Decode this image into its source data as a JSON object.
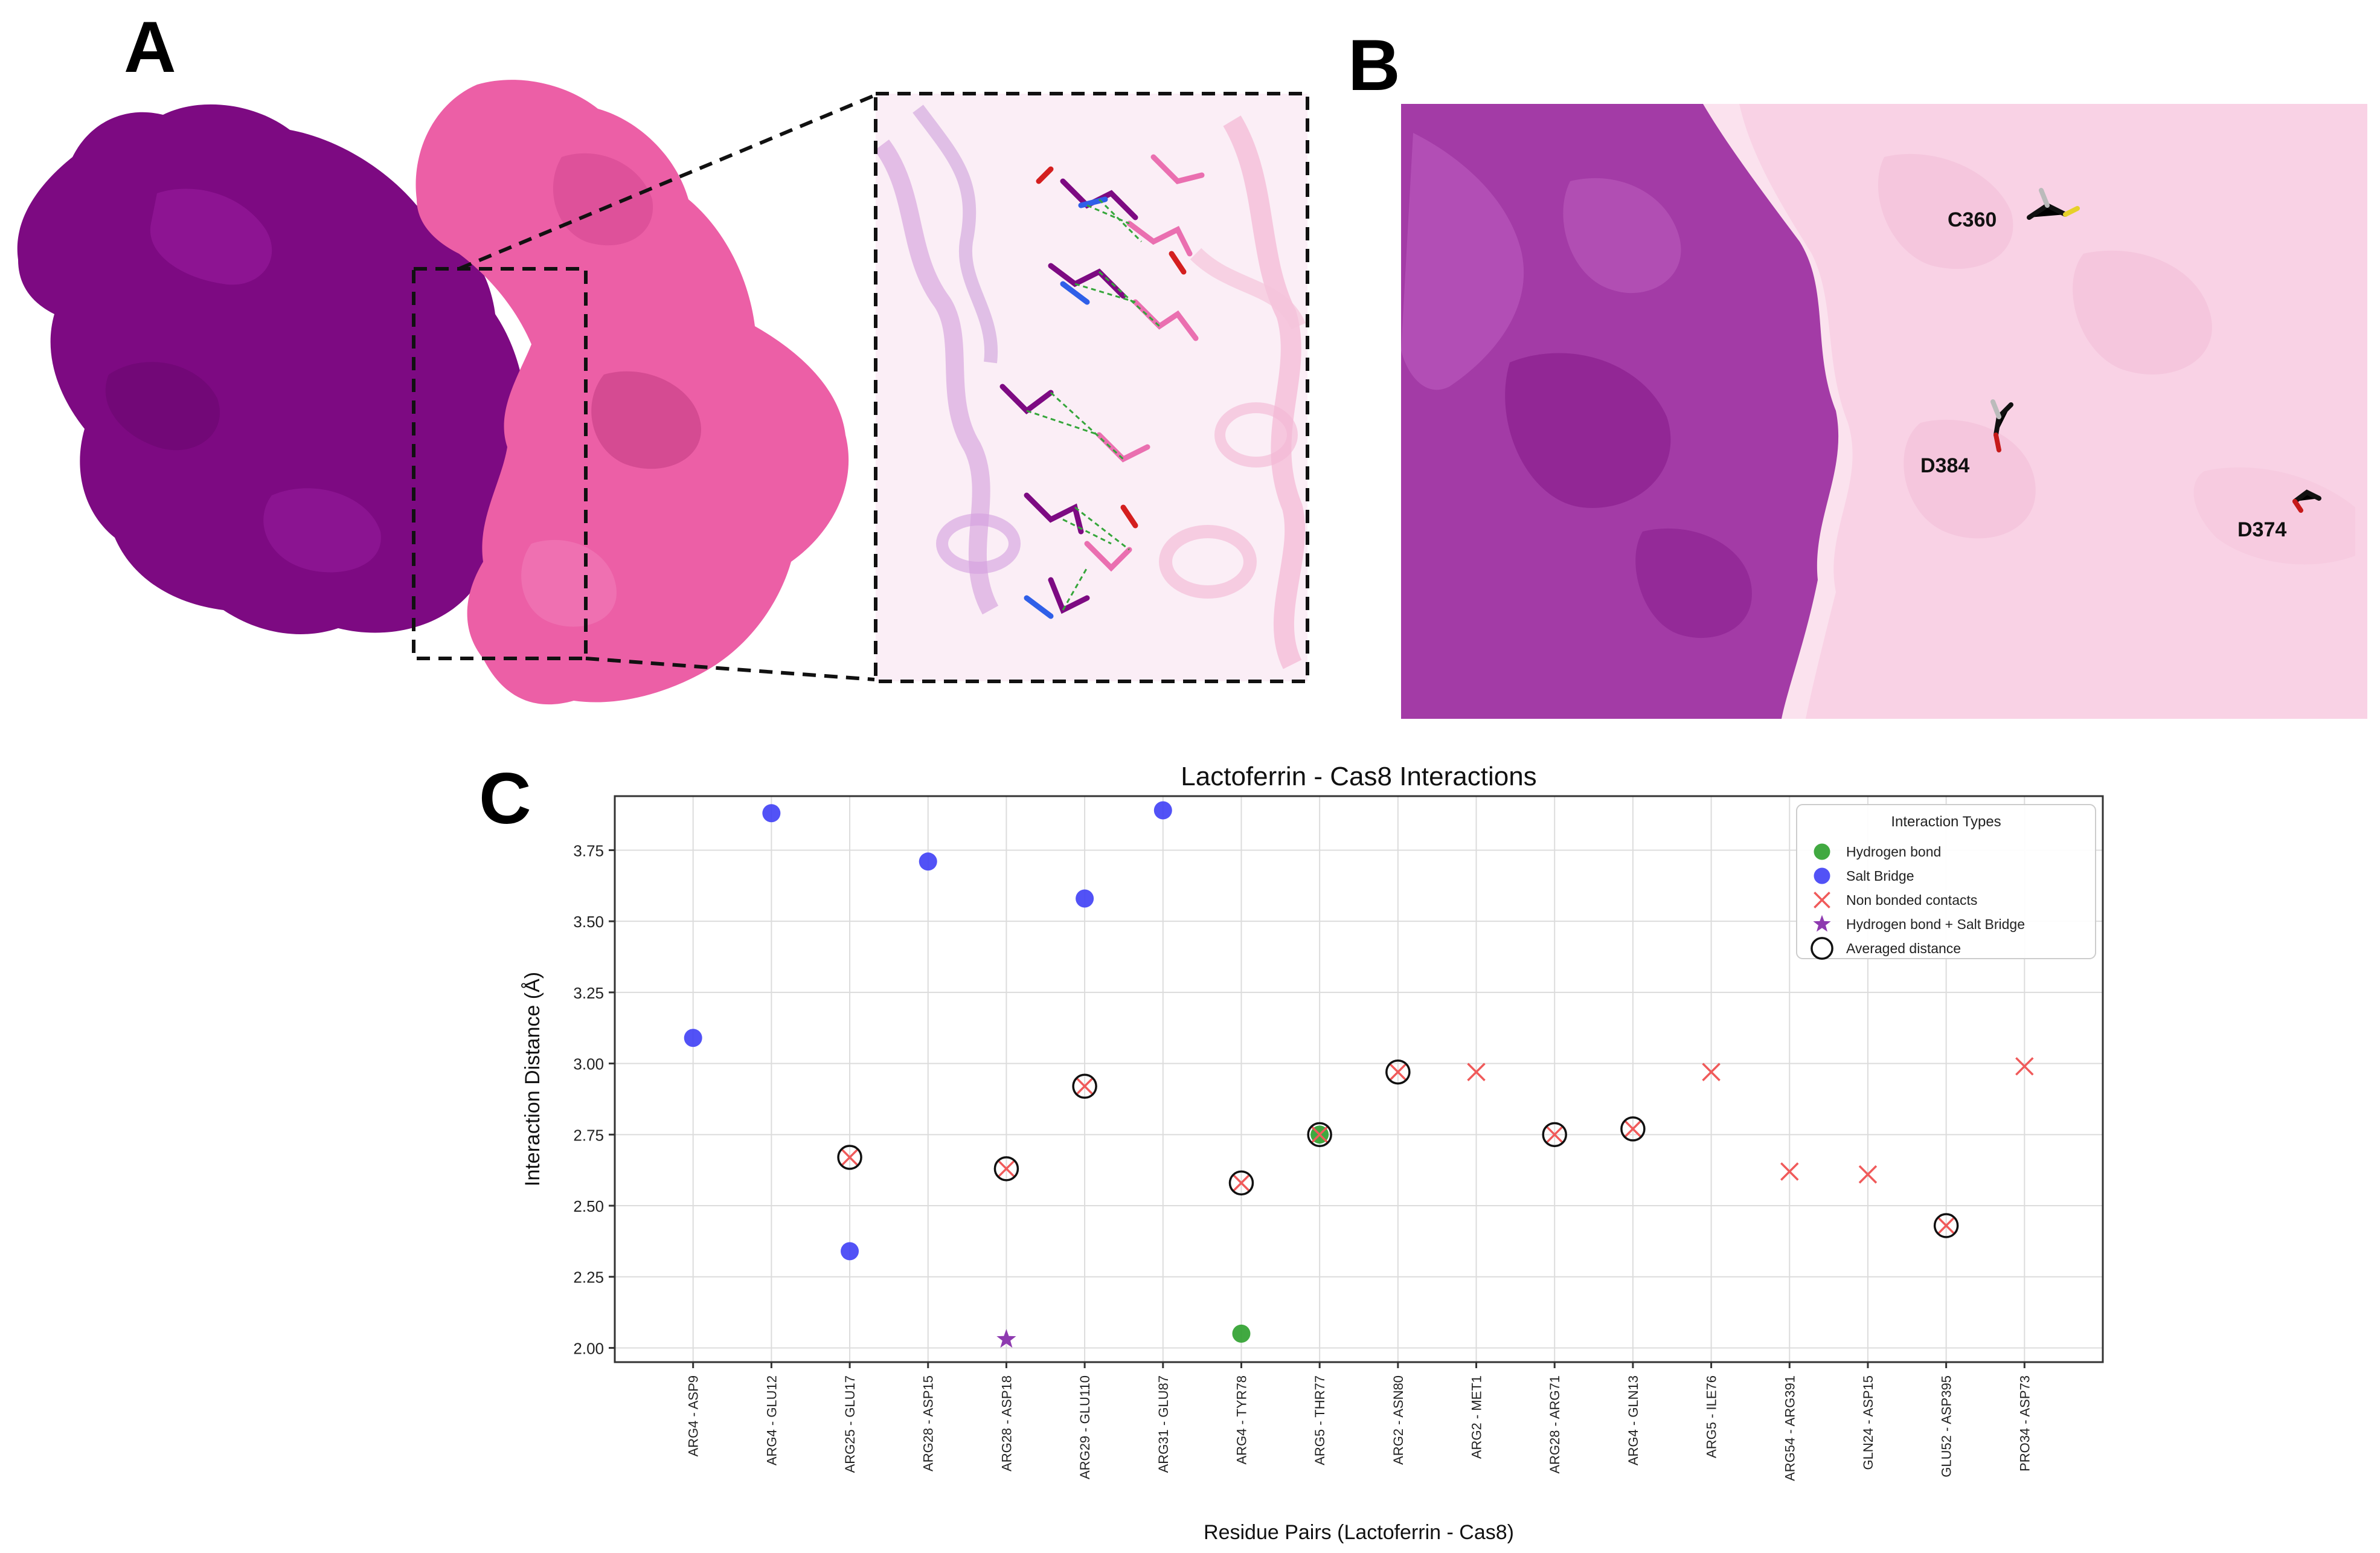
{
  "figure": {
    "panels": {
      "a": {
        "letter": "A"
      },
      "b": {
        "letter": "B",
        "residue_labels": [
          "C360",
          "D384",
          "D374"
        ]
      },
      "c": {
        "letter": "C"
      }
    },
    "colors": {
      "lactoferrin": "#7d0a82",
      "cas8": "#ec5fa6",
      "cas8_light": "#f8cfe3",
      "hbond": "#2ca02c",
      "salt_bridge": "#3f3ff5",
      "non_bonded": "#f05a5a",
      "hbond_salt": "#8e3ab0"
    }
  },
  "chart_data": {
    "type": "scatter",
    "title": "Lactoferrin - Cas8 Interactions",
    "xlabel": "Residue Pairs (Lactoferrin - Cas8)",
    "ylabel": "Interaction Distance (Å)",
    "ylim": [
      1.95,
      3.94
    ],
    "yticks": [
      "2.00",
      "2.25",
      "2.50",
      "2.75",
      "3.00",
      "3.25",
      "3.50",
      "3.75"
    ],
    "grid": true,
    "legend_title": "Interaction Types",
    "legend_position": "top-right",
    "legend": [
      {
        "key": "hbond",
        "label": "Hydrogen bond"
      },
      {
        "key": "salt",
        "label": "Salt Bridge"
      },
      {
        "key": "nonbonded",
        "label": "Non bonded contacts"
      },
      {
        "key": "hbsalt",
        "label": "Hydrogen bond + Salt Bridge"
      },
      {
        "key": "avg",
        "label": "Averaged distance"
      }
    ],
    "categories": [
      "ARG4 - ASP9",
      "ARG4 - GLU12",
      "ARG25 - GLU17",
      "ARG28 - ASP15",
      "ARG28 - ASP18",
      "ARG29 - GLU110",
      "ARG31 - GLU87",
      "ARG4 - TYR78",
      "ARG5 - THR77",
      "ARG2 - ASN80",
      "ARG2 - MET1",
      "ARG28 - ARG71",
      "ARG4 - GLN13",
      "ARG5 - ILE76",
      "ARG54 - ARG391",
      "GLN24 - ASP15",
      "GLU52 - ASP395",
      "PRO34 - ASP73"
    ],
    "series": [
      {
        "name": "Hydrogen bond",
        "key": "hbond",
        "points": [
          {
            "x": 7,
            "y": 2.05
          },
          {
            "x": 8,
            "y": 2.75
          }
        ]
      },
      {
        "name": "Salt Bridge",
        "key": "salt",
        "points": [
          {
            "x": 0,
            "y": 3.09
          },
          {
            "x": 1,
            "y": 3.88
          },
          {
            "x": 2,
            "y": 2.34
          },
          {
            "x": 3,
            "y": 3.71
          },
          {
            "x": 5,
            "y": 3.58
          },
          {
            "x": 6,
            "y": 3.89
          }
        ]
      },
      {
        "name": "Non bonded contacts",
        "key": "nonbonded",
        "points": [
          {
            "x": 2,
            "y": 2.67
          },
          {
            "x": 4,
            "y": 2.63
          },
          {
            "x": 5,
            "y": 2.92
          },
          {
            "x": 7,
            "y": 2.58
          },
          {
            "x": 8,
            "y": 2.75
          },
          {
            "x": 9,
            "y": 2.97
          },
          {
            "x": 10,
            "y": 2.97
          },
          {
            "x": 11,
            "y": 2.75
          },
          {
            "x": 12,
            "y": 2.77
          },
          {
            "x": 13,
            "y": 2.97
          },
          {
            "x": 14,
            "y": 2.62
          },
          {
            "x": 15,
            "y": 2.61
          },
          {
            "x": 16,
            "y": 2.43
          },
          {
            "x": 17,
            "y": 2.99
          }
        ]
      },
      {
        "name": "Hydrogen bond + Salt Bridge",
        "key": "hbsalt",
        "points": [
          {
            "x": 4,
            "y": 2.03
          }
        ]
      },
      {
        "name": "Averaged distance",
        "key": "avg",
        "points": [
          {
            "x": 2,
            "y": 2.67
          },
          {
            "x": 4,
            "y": 2.63
          },
          {
            "x": 5,
            "y": 2.92
          },
          {
            "x": 7,
            "y": 2.58
          },
          {
            "x": 8,
            "y": 2.75
          },
          {
            "x": 9,
            "y": 2.97
          },
          {
            "x": 11,
            "y": 2.75
          },
          {
            "x": 12,
            "y": 2.77
          },
          {
            "x": 16,
            "y": 2.43
          }
        ]
      }
    ]
  }
}
